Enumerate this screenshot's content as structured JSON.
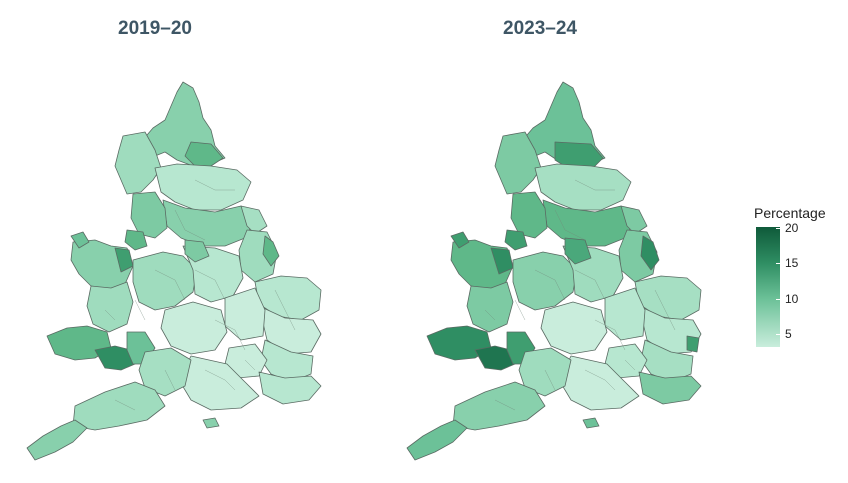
{
  "panels": [
    {
      "title": "2019–20"
    },
    {
      "title": "2023–24"
    }
  ],
  "legend": {
    "title": "Percentage",
    "ticks": [
      "20",
      "15",
      "10",
      "5"
    ],
    "tick_values": [
      20,
      15,
      10,
      5
    ],
    "range": [
      3,
      20
    ],
    "colors": {
      "high": "#0f5a3a",
      "mid_high": "#2f8e63",
      "mid": "#6cc198",
      "low": "#c9eddc"
    }
  },
  "map": {
    "region": "England and Wales",
    "boundary_color": "#5a6b63"
  }
}
